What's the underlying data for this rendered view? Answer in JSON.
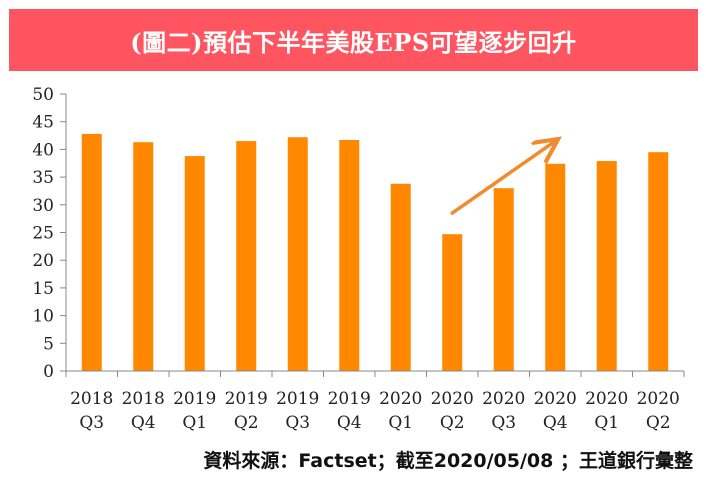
{
  "header": {
    "title": "(圖二)預估下半年美股EPS可望逐步回升"
  },
  "source": "資料來源：Factset；截至2020/05/08 ；王道銀行彙整",
  "colors": {
    "banner": "#ff5560",
    "bar": "#ff8800",
    "arrow": "#f28a2e",
    "axis": "#888888"
  },
  "chart_data": {
    "type": "bar",
    "categories": [
      [
        "2018",
        "Q3"
      ],
      [
        "2018",
        "Q4"
      ],
      [
        "2019",
        "Q1"
      ],
      [
        "2019",
        "Q2"
      ],
      [
        "2019",
        "Q3"
      ],
      [
        "2019",
        "Q4"
      ],
      [
        "2020",
        "Q1"
      ],
      [
        "2020",
        "Q2"
      ],
      [
        "2020",
        "Q3"
      ],
      [
        "2020",
        "Q4"
      ],
      [
        "2020",
        "Q1"
      ],
      [
        "2020",
        "Q2"
      ]
    ],
    "values": [
      42.8,
      41.3,
      38.8,
      41.5,
      42.2,
      41.7,
      33.8,
      24.7,
      33.0,
      37.4,
      37.9,
      39.5
    ],
    "ylim": [
      0,
      50
    ],
    "yticks": [
      "0",
      "5",
      "10",
      "15",
      "20",
      "25",
      "30",
      "35",
      "40",
      "45",
      "50"
    ],
    "grid": false,
    "legend": "none",
    "annotations": [
      {
        "type": "arrow",
        "from_category": 7,
        "from_value": 28.5,
        "to_category": 9,
        "to_value": 41.5
      }
    ]
  }
}
